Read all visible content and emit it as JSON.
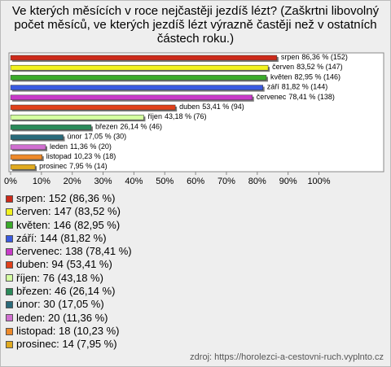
{
  "chart_data": {
    "type": "bar",
    "title": "Ve kterých měsících v roce nejčastěji jezdíš lézt? (Zaškrtni libovolný počet měsíců, ve kterých jezdíš lézt výrazně častěji než v ostatních částech roku.)",
    "categories": [
      "srpen",
      "červen",
      "květen",
      "září",
      "červenec",
      "duben",
      "říjen",
      "březen",
      "únor",
      "leden",
      "listopad",
      "prosinec"
    ],
    "values": [
      86.36,
      83.52,
      82.95,
      81.82,
      78.41,
      53.41,
      43.18,
      26.14,
      17.05,
      11.36,
      10.23,
      7.95
    ],
    "value_labels": [
      "86,36 % (152)",
      "83,52 % (147)",
      "82,95 % (146)",
      "81,82 % (144)",
      "78,41 % (138)",
      "53,41 % (94)",
      "43,18 % (76)",
      "26,14 % (46)",
      "17,05 % (30)",
      "11,36 % (20)",
      "10,23 % (18)",
      "7,95 % (14)"
    ],
    "legend": [
      "srpen: 152 (86,36 %)",
      "červen: 147 (83,52 %)",
      "květen: 146 (82,95 %)",
      "září: 144 (81,82 %)",
      "červenec: 138 (78,41 %)",
      "duben: 94 (53,41 %)",
      "říjen: 76 (43,18 %)",
      "březen: 46 (26,14 %)",
      "únor: 30 (17,05 %)",
      "leden: 20 (11,36 %)",
      "listopad: 18 (10,23 %)",
      "prosinec: 14 (7,95 %)"
    ],
    "colors": [
      "#cc2a1a",
      "#f2f21e",
      "#3aaa2a",
      "#3a5ae0",
      "#c83ac8",
      "#e0401a",
      "#d4ffa0",
      "#2a8a5a",
      "#2a6a7a",
      "#d070d0",
      "#ee8a2a",
      "#e0aa20"
    ],
    "xlim": [
      0,
      121
    ],
    "xticks": [
      {
        "value": 0,
        "label": "0%"
      },
      {
        "value": 10,
        "label": "10%"
      },
      {
        "value": 20,
        "label": "20%"
      },
      {
        "value": 30,
        "label": "30%"
      },
      {
        "value": 40,
        "label": "40%"
      },
      {
        "value": 50,
        "label": "50%"
      },
      {
        "value": 60,
        "label": "60%"
      },
      {
        "value": 70,
        "label": "70%"
      },
      {
        "value": 80,
        "label": "80%"
      },
      {
        "value": 90,
        "label": "90%"
      },
      {
        "value": 100,
        "label": "100%"
      }
    ]
  },
  "source": "zdroj: https://horolezci-a-cestovni-ruch.vyplnto.cz"
}
